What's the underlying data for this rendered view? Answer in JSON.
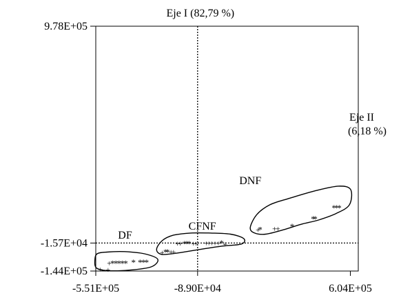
{
  "chart_data": {
    "type": "scatter",
    "title": "Eje I (82,79 %)",
    "ylabel": "Eje II\n(6,18 %)",
    "xlim": [
      -551000,
      640000
    ],
    "ylim": [
      -144000,
      978000
    ],
    "x_ticks": [
      {
        "value": -551000,
        "label": "-5.51E+05"
      },
      {
        "value": -89000,
        "label": "-8.90E+04"
      },
      {
        "value": 604000,
        "label": "6.04E+05"
      }
    ],
    "y_ticks": [
      {
        "value": 978000,
        "label": "9.78E+05"
      },
      {
        "value": -15700,
        "label": "-1.57E+04"
      },
      {
        "value": -144000,
        "label": "-1.44E+05"
      }
    ],
    "reference_lines": {
      "x": -89000,
      "y": -15700
    },
    "grid": false,
    "groups": [
      {
        "name": "DF",
        "label_pos": [
          -450000,
          5000
        ],
        "hull": [
          [
            -545000,
            -65000
          ],
          [
            -500000,
            -57000
          ],
          [
            -420000,
            -55000
          ],
          [
            -330000,
            -65000
          ],
          [
            -270000,
            -90000
          ],
          [
            -300000,
            -125000
          ],
          [
            -400000,
            -140000
          ],
          [
            -500000,
            -142000
          ],
          [
            -548000,
            -130000
          ],
          [
            -555000,
            -95000
          ]
        ],
        "points": [
          {
            "x": -530000,
            "y": -136000,
            "m": "+"
          },
          {
            "x": -495000,
            "y": -137000,
            "m": "+"
          },
          {
            "x": -490000,
            "y": -108000,
            "m": "+"
          },
          {
            "x": -475000,
            "y": -105000,
            "m": "*"
          },
          {
            "x": -460000,
            "y": -105000,
            "m": "*"
          },
          {
            "x": -445000,
            "y": -105000,
            "m": "*"
          },
          {
            "x": -430000,
            "y": -105000,
            "m": "*"
          },
          {
            "x": -415000,
            "y": -105000,
            "m": "*"
          },
          {
            "x": -380000,
            "y": -100000,
            "m": "*"
          },
          {
            "x": -350000,
            "y": -100000,
            "m": "*"
          },
          {
            "x": -335000,
            "y": -100000,
            "m": "*"
          },
          {
            "x": -320000,
            "y": -100000,
            "m": "*"
          }
        ]
      },
      {
        "name": "CFNF",
        "label_pos": [
          -130000,
          45000
        ],
        "hull": [
          [
            -250000,
            -5000
          ],
          [
            -200000,
            20000
          ],
          [
            -120000,
            30000
          ],
          [
            -30000,
            30000
          ],
          [
            60000,
            25000
          ],
          [
            120000,
            5000
          ],
          [
            110000,
            -20000
          ],
          [
            20000,
            -30000
          ],
          [
            -80000,
            -45000
          ],
          [
            -170000,
            -60000
          ],
          [
            -250000,
            -68000
          ],
          [
            -275000,
            -45000
          ]
        ],
        "points": [
          {
            "x": -250000,
            "y": -58000,
            "m": "+"
          },
          {
            "x": -235000,
            "y": -52000,
            "m": "*"
          },
          {
            "x": -225000,
            "y": -52000,
            "m": "*"
          },
          {
            "x": -210000,
            "y": -56000,
            "m": "+"
          },
          {
            "x": -198000,
            "y": -56000,
            "m": "+"
          },
          {
            "x": -180000,
            "y": -18000,
            "m": "+"
          },
          {
            "x": -168000,
            "y": -18000,
            "m": "+"
          },
          {
            "x": -148000,
            "y": -14000,
            "m": "*"
          },
          {
            "x": -138000,
            "y": -14000,
            "m": "*"
          },
          {
            "x": -128000,
            "y": -14000,
            "m": "*"
          },
          {
            "x": -108000,
            "y": -18000,
            "m": "+"
          },
          {
            "x": -96000,
            "y": -18000,
            "m": "+"
          },
          {
            "x": -50000,
            "y": -16000,
            "m": "+"
          },
          {
            "x": -38000,
            "y": -16000,
            "m": "+"
          },
          {
            "x": -25000,
            "y": -16000,
            "m": "+"
          },
          {
            "x": -10000,
            "y": -16000,
            "m": "+"
          },
          {
            "x": 5000,
            "y": -16000,
            "m": "+"
          },
          {
            "x": 20000,
            "y": -12000,
            "m": "*"
          },
          {
            "x": 35000,
            "y": -20000,
            "m": "+"
          }
        ]
      },
      {
        "name": "DNF",
        "label_pos": [
          100000,
          255000
        ],
        "hull": [
          [
            150000,
            55000
          ],
          [
            180000,
            115000
          ],
          [
            240000,
            160000
          ],
          [
            330000,
            190000
          ],
          [
            450000,
            225000
          ],
          [
            550000,
            245000
          ],
          [
            605000,
            230000
          ],
          [
            600000,
            160000
          ],
          [
            540000,
            120000
          ],
          [
            460000,
            90000
          ],
          [
            380000,
            70000
          ],
          [
            300000,
            45000
          ],
          [
            220000,
            25000
          ],
          [
            170000,
            30000
          ]
        ],
        "points": [
          {
            "x": 185000,
            "y": 45000,
            "m": "+"
          },
          {
            "x": 195000,
            "y": 50000,
            "m": "*"
          },
          {
            "x": 260000,
            "y": 50000,
            "m": "+"
          },
          {
            "x": 275000,
            "y": 50000,
            "m": "+"
          },
          {
            "x": 340000,
            "y": 65000,
            "m": "*"
          },
          {
            "x": 435000,
            "y": 100000,
            "m": "*"
          },
          {
            "x": 445000,
            "y": 100000,
            "m": "*"
          },
          {
            "x": 530000,
            "y": 150000,
            "m": "*"
          },
          {
            "x": 542000,
            "y": 150000,
            "m": "*"
          },
          {
            "x": 554000,
            "y": 150000,
            "m": "*"
          }
        ]
      }
    ]
  }
}
